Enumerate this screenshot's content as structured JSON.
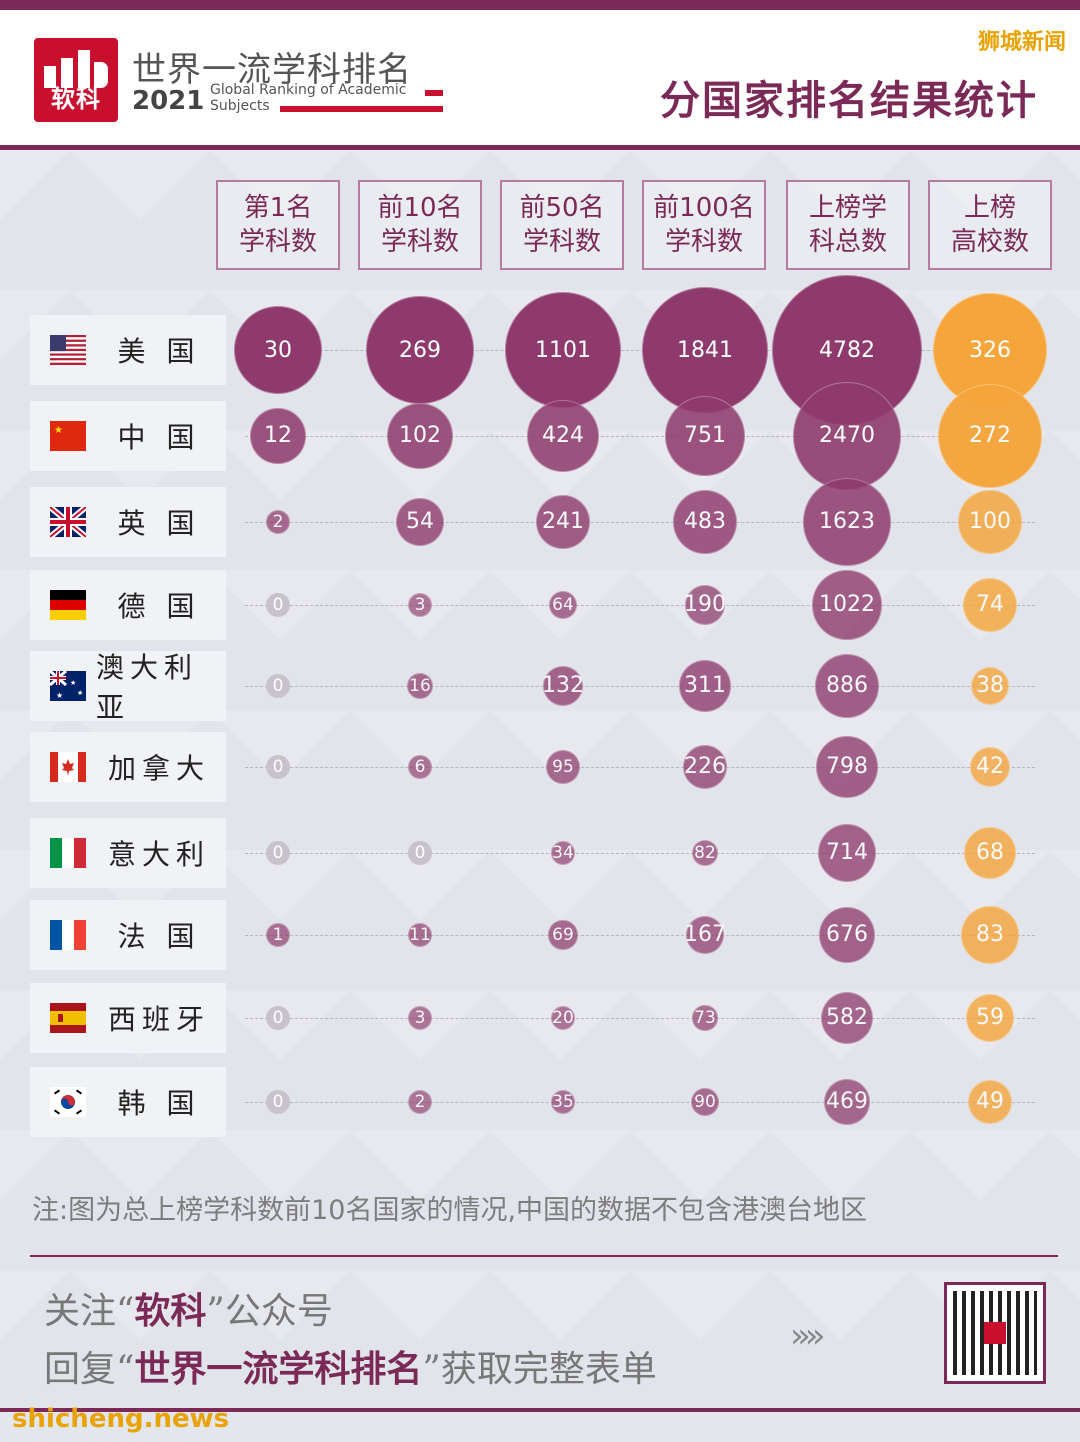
{
  "brand": {
    "logo_text": "软科",
    "title": "世界一流学科排名",
    "year": "2021",
    "subtitle": "Global Ranking of Academic Subjects"
  },
  "watermark_top": "狮城新闻",
  "page_title": "分国家排名结果统计",
  "columns": [
    {
      "line1": "第1名",
      "line2": "学科数"
    },
    {
      "line1": "前10名",
      "line2": "学科数"
    },
    {
      "line1": "前50名",
      "line2": "学科数"
    },
    {
      "line1": "前100名",
      "line2": "学科数"
    },
    {
      "line1": "上榜学",
      "line2": "科总数"
    },
    {
      "line1": "上榜",
      "line2": "高校数"
    }
  ],
  "countries": [
    {
      "name": "美 国",
      "flag": "us-flag-icon",
      "values": [
        30,
        269,
        1101,
        1841,
        4782,
        326
      ]
    },
    {
      "name": "中 国",
      "flag": "china-flag-icon",
      "values": [
        12,
        102,
        424,
        751,
        2470,
        272
      ]
    },
    {
      "name": "英 国",
      "flag": "uk-flag-icon",
      "values": [
        2,
        54,
        241,
        483,
        1623,
        100
      ]
    },
    {
      "name": "德 国",
      "flag": "germany-flag-icon",
      "values": [
        0,
        3,
        64,
        190,
        1022,
        74
      ]
    },
    {
      "name": "澳大利亚",
      "flag": "australia-flag-icon",
      "values": [
        0,
        16,
        132,
        311,
        886,
        38
      ]
    },
    {
      "name": "加拿大",
      "flag": "canada-flag-icon",
      "values": [
        0,
        6,
        95,
        226,
        798,
        42
      ]
    },
    {
      "name": "意大利",
      "flag": "italy-flag-icon",
      "values": [
        0,
        0,
        34,
        82,
        714,
        68
      ]
    },
    {
      "name": "法 国",
      "flag": "france-flag-icon",
      "values": [
        1,
        11,
        69,
        167,
        676,
        83
      ]
    },
    {
      "name": "西班牙",
      "flag": "spain-flag-icon",
      "values": [
        0,
        3,
        20,
        73,
        582,
        59
      ]
    },
    {
      "name": "韩 国",
      "flag": "korea-flag-icon",
      "values": [
        0,
        2,
        35,
        90,
        469,
        49
      ]
    }
  ],
  "colors": {
    "brand": "#7b2a58",
    "bubble": "#8e3a6c",
    "orange": "#f5a53a",
    "zero": "#c8c2cc",
    "logo_red": "#c8102e"
  },
  "note": "注:图为总上榜学科数前10名国家的情况,中国的数据不包含港澳台地区",
  "footer": {
    "line1_pre": "关注“",
    "line1_bold": "软科",
    "line1_post": "”公众号",
    "line2_pre": "回复“",
    "line2_bold": "世界一流学科排名",
    "line2_post": "”获取完整表单",
    "arrows": "»»",
    "qr_logo": "软科"
  },
  "watermark_bottom": "shicheng.news"
}
